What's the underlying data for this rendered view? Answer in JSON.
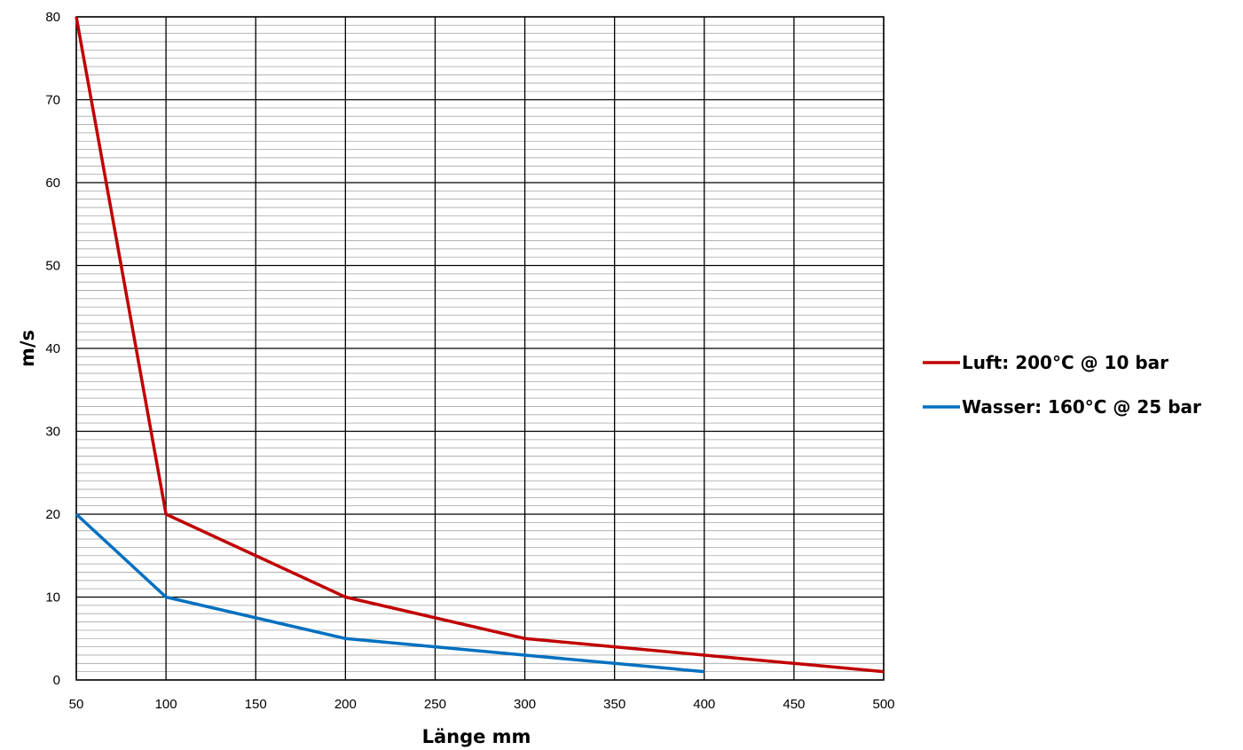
{
  "chart_data": {
    "type": "line",
    "xlabel": "Länge mm",
    "ylabel": "m/s",
    "xlim": [
      50,
      500
    ],
    "ylim": [
      0,
      80
    ],
    "x_ticks": [
      50,
      100,
      150,
      200,
      250,
      300,
      350,
      400,
      450,
      500
    ],
    "y_ticks": [
      0,
      10,
      20,
      30,
      40,
      50,
      60,
      70,
      80
    ],
    "grid": {
      "major_x": true,
      "major_y": true,
      "minor_y": true,
      "minor_y_step": 1
    },
    "legend_position": "right",
    "series": [
      {
        "name": "Luft: 200°C @ 10 bar",
        "color": "#c00000",
        "x": [
          50,
          100,
          150,
          200,
          250,
          300,
          350,
          400,
          450,
          500
        ],
        "y": [
          80,
          20,
          15,
          10,
          7.5,
          5,
          4,
          3,
          2,
          1
        ]
      },
      {
        "name": "Wasser: 160°C @ 25 bar",
        "color": "#0070c0",
        "x": [
          50,
          100,
          150,
          200,
          250,
          300,
          350,
          400
        ],
        "y": [
          20,
          10,
          7.5,
          5,
          4,
          3,
          2,
          1
        ]
      }
    ]
  }
}
